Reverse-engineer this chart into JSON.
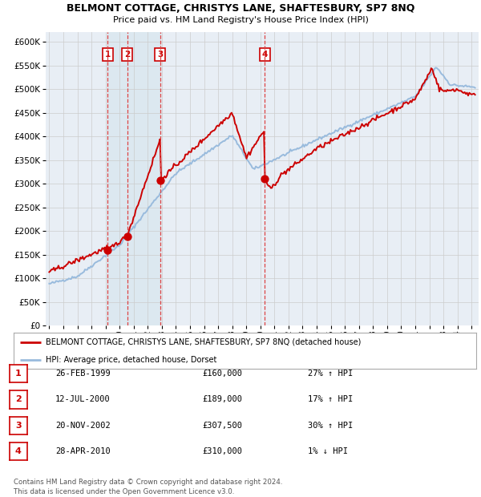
{
  "title": "BELMONT COTTAGE, CHRISTYS LANE, SHAFTESBURY, SP7 8NQ",
  "subtitle": "Price paid vs. HM Land Registry's House Price Index (HPI)",
  "background_color": "#ffffff",
  "plot_bg_color": "#e8eef5",
  "ylim": [
    0,
    620000
  ],
  "yticks": [
    0,
    50000,
    100000,
    150000,
    200000,
    250000,
    300000,
    350000,
    400000,
    450000,
    500000,
    550000,
    600000
  ],
  "xlim_start": 1994.75,
  "xlim_end": 2025.5,
  "sales": [
    {
      "date": 1999.15,
      "price": 160000,
      "label": "1"
    },
    {
      "date": 2000.53,
      "price": 189000,
      "label": "2"
    },
    {
      "date": 2002.89,
      "price": 307500,
      "label": "3"
    },
    {
      "date": 2010.32,
      "price": 310000,
      "label": "4"
    }
  ],
  "vline_dates": [
    1999.15,
    2000.53,
    2002.89,
    2010.32
  ],
  "legend_entries": [
    {
      "label": "BELMONT COTTAGE, CHRISTYS LANE, SHAFTESBURY, SP7 8NQ (detached house)",
      "color": "#cc0000"
    },
    {
      "label": "HPI: Average price, detached house, Dorset",
      "color": "#99bbdd"
    }
  ],
  "table_rows": [
    {
      "num": "1",
      "date": "26-FEB-1999",
      "price": "£160,000",
      "pct": "27% ↑ HPI"
    },
    {
      "num": "2",
      "date": "12-JUL-2000",
      "price": "£189,000",
      "pct": "17% ↑ HPI"
    },
    {
      "num": "3",
      "date": "20-NOV-2002",
      "price": "£307,500",
      "pct": "30% ↑ HPI"
    },
    {
      "num": "4",
      "date": "28-APR-2010",
      "price": "£310,000",
      "pct": "1% ↓ HPI"
    }
  ],
  "footer": "Contains HM Land Registry data © Crown copyright and database right 2024.\nThis data is licensed under the Open Government Licence v3.0.",
  "hpi_color": "#99bbdd",
  "price_color": "#cc0000",
  "grid_color": "#cccccc",
  "vline_color": "#dd4444",
  "shade_color": "#dce8f0",
  "marker_color": "#cc0000",
  "box_color": "#cc0000"
}
